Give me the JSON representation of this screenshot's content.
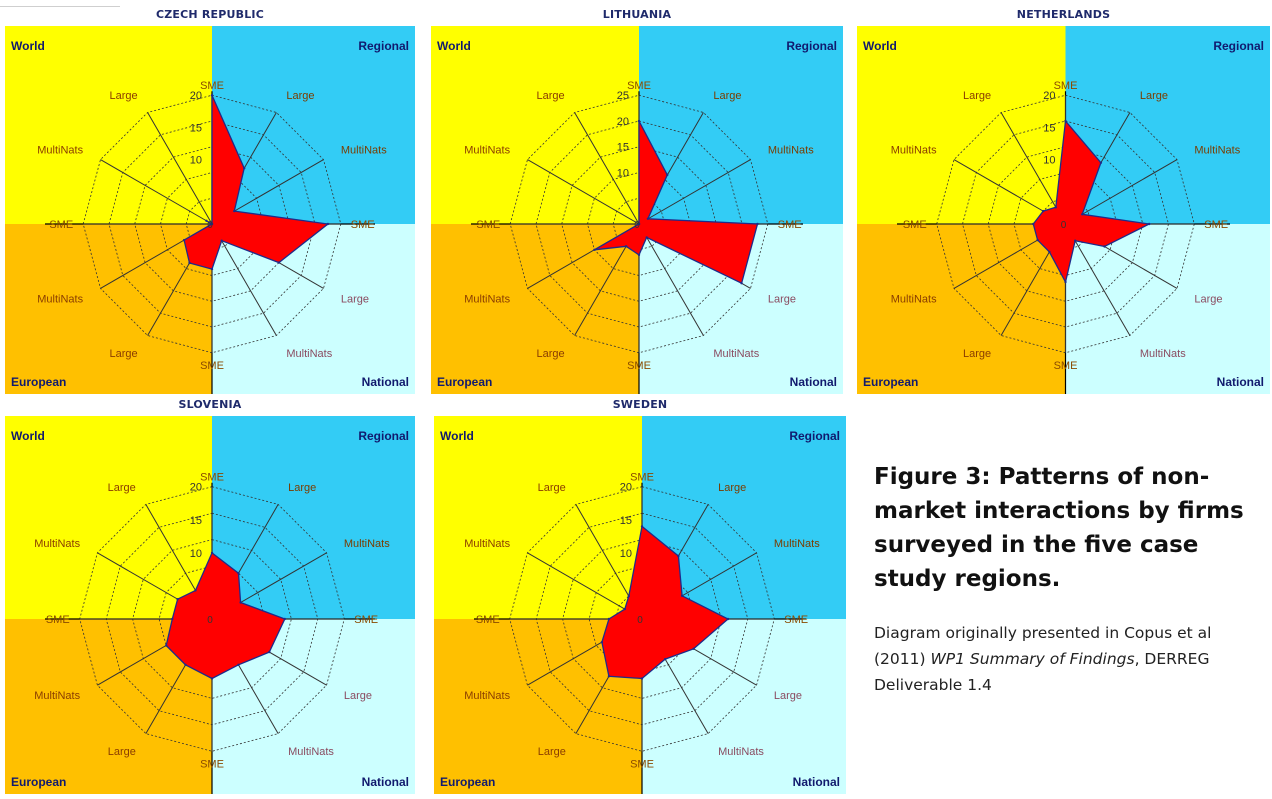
{
  "quadrant_labels": {
    "top_left": "World",
    "top_right": "Regional",
    "bottom_left": "European",
    "bottom_right": "National"
  },
  "spoke_labels": [
    "SME",
    "Large",
    "MultiNats",
    "SME",
    "Large",
    "MultiNats",
    "SME",
    "Large",
    "MultiNats",
    "SME",
    "MultiNats",
    "Large"
  ],
  "colors": {
    "world": "#ffff00",
    "regional": "#33ccf5",
    "european": "#ffc000",
    "national": "#ccffff",
    "fill": "#ff0000",
    "outline": "#1f2a8a",
    "axis": "#000000"
  },
  "chart_data": [
    {
      "type": "radar",
      "title": "CZECH REPUBLIC",
      "categories": [
        "Regional SME",
        "Regional Large",
        "Regional MultiNats",
        "National SME",
        "National Large",
        "National MultiNats",
        "European SME",
        "European Large",
        "European MultiNats",
        "World SME",
        "World MultiNats",
        "World Large"
      ],
      "values": [
        20,
        10,
        4,
        18,
        12,
        3,
        7,
        7,
        5,
        0,
        1,
        0
      ],
      "rmax": 20,
      "ticks": [
        "20",
        "15",
        "10"
      ]
    },
    {
      "type": "radar",
      "title": "LITHUANIA",
      "categories": [
        "Regional SME",
        "Regional Large",
        "Regional MultiNats",
        "National SME",
        "National Large",
        "National MultiNats",
        "European SME",
        "European Large",
        "European MultiNats",
        "World SME",
        "World MultiNats",
        "World Large"
      ],
      "values": [
        20,
        11,
        2,
        23,
        23,
        3,
        6,
        5,
        10,
        0,
        0,
        0
      ],
      "rmax": 25,
      "ticks": [
        "25",
        "20",
        "15",
        "10"
      ]
    },
    {
      "type": "radar",
      "title": "NETHERLANDS",
      "categories": [
        "Regional SME",
        "Regional Large",
        "Regional MultiNats",
        "National SME",
        "National Large",
        "National MultiNats",
        "European SME",
        "European Large",
        "European MultiNats",
        "World SME",
        "World MultiNats",
        "World Large"
      ],
      "values": [
        16,
        11,
        3,
        13,
        7,
        3,
        9,
        5,
        5,
        5,
        4,
        3
      ],
      "rmax": 20,
      "ticks": [
        "20",
        "15",
        "10"
      ]
    },
    {
      "type": "radar",
      "title": "SLOVENIA",
      "categories": [
        "Regional SME",
        "Regional Large",
        "Regional MultiNats",
        "National SME",
        "National Large",
        "National MultiNats",
        "European SME",
        "European Large",
        "European MultiNats",
        "World SME",
        "World MultiNats",
        "World Large"
      ],
      "values": [
        10,
        8,
        5,
        11,
        10,
        8,
        9,
        8,
        8,
        6,
        6,
        5
      ],
      "rmax": 20,
      "ticks": [
        "20",
        "15",
        "10"
      ]
    },
    {
      "type": "radar",
      "title": "SWEDEN",
      "categories": [
        "Regional SME",
        "Regional Large",
        "Regional MultiNats",
        "National SME",
        "National Large",
        "National MultiNats",
        "European SME",
        "European Large",
        "European MultiNats",
        "World SME",
        "World MultiNats",
        "World Large"
      ],
      "values": [
        14,
        11,
        7,
        13,
        9,
        7,
        9,
        10,
        7,
        5,
        3,
        4
      ],
      "rmax": 20,
      "ticks": [
        "20",
        "15",
        "10"
      ]
    }
  ],
  "caption": {
    "title": "Figure 3: Patterns of non-market interactions by firms surveyed in the five case study regions.",
    "note_prefix": "Diagram originally presented in Copus et al (2011) ",
    "note_italic": "WP1 Summary of Findings",
    "note_suffix": ", DERREG Deliverable 1.4"
  }
}
